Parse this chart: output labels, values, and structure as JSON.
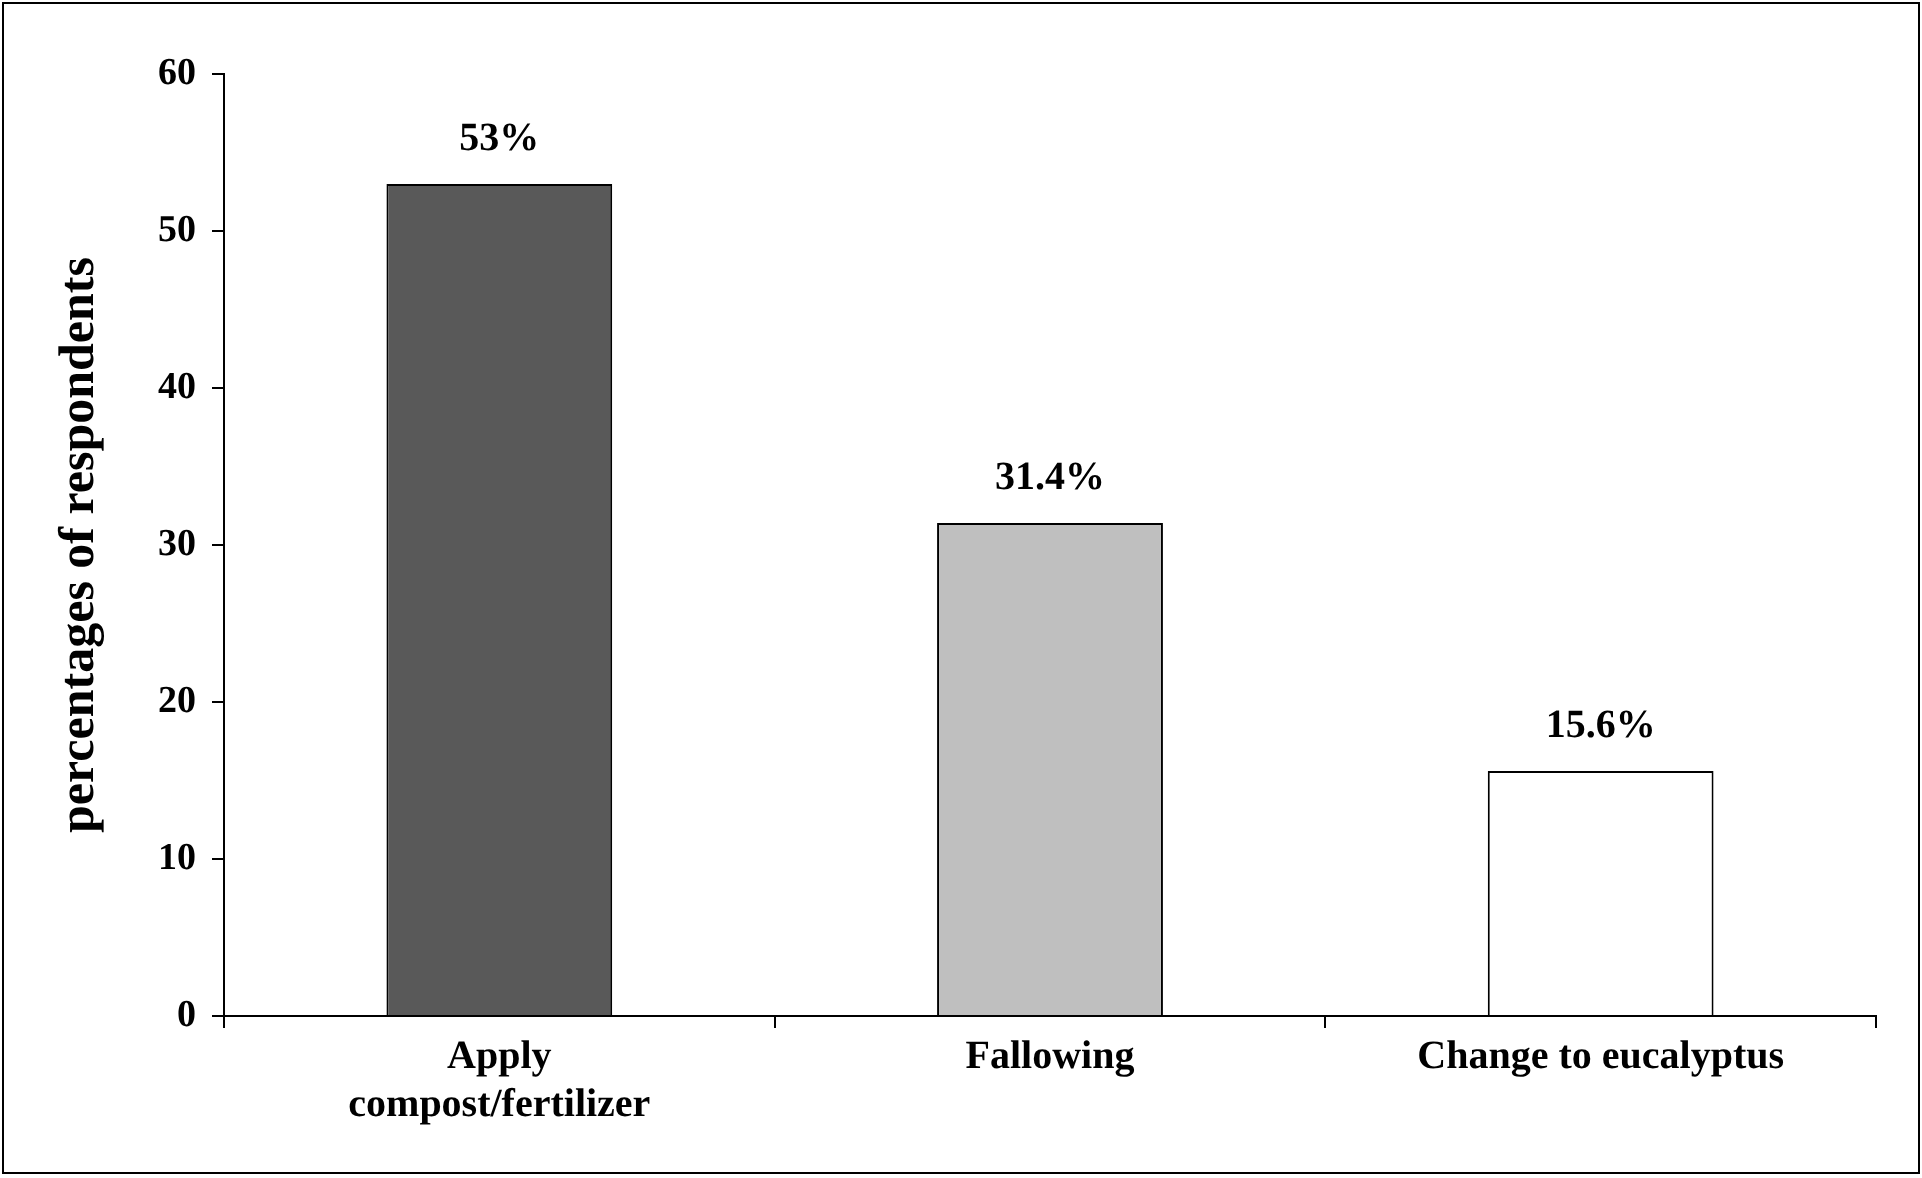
{
  "chart_data": {
    "type": "bar",
    "ylabel": "percentages of respondents",
    "categories": [
      "Apply compost/fertilizer",
      "Fallowing",
      "Change to eucalyptus"
    ],
    "values": [
      53,
      31.4,
      15.6
    ],
    "colors": [
      "#595959",
      "#bfbfbf",
      "#ffffff"
    ],
    "value_labels": [
      "53%",
      "31.4%",
      "15.6%"
    ],
    "ylim": [
      0,
      60
    ],
    "yticks": [
      0,
      10,
      20,
      30,
      40,
      50,
      60
    ],
    "legend": false
  }
}
